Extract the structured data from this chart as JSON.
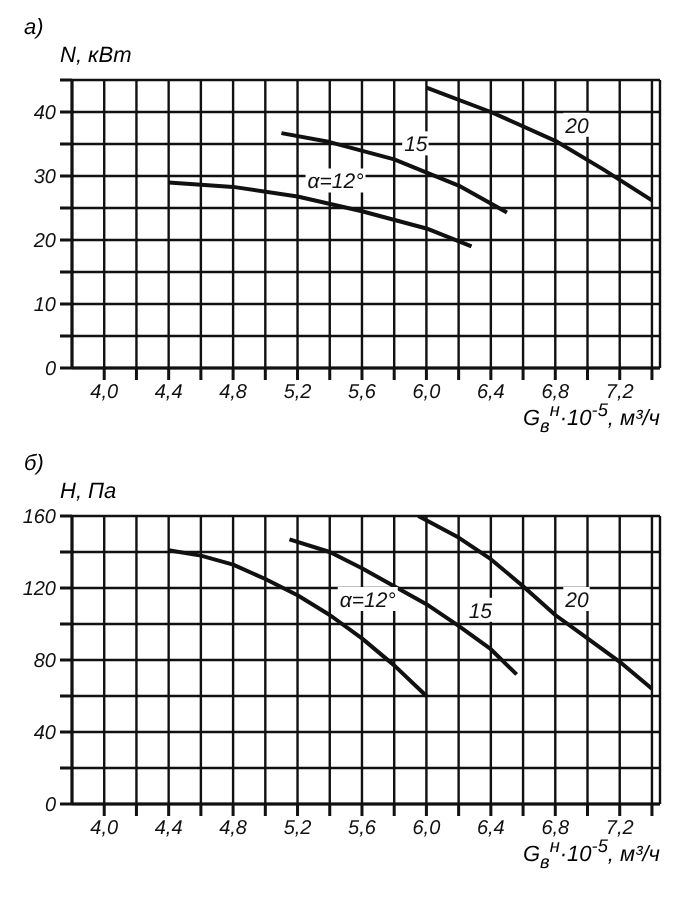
{
  "chart_data": [
    {
      "type": "line",
      "title": "а)",
      "ylabel": "N, кВт",
      "xlabel": "G$_{в}$$^{н}$·10$^{-5}$, м³/ч",
      "grid": true,
      "marker": "none",
      "line_style": "solid",
      "xlim": [
        3.8,
        7.45
      ],
      "ylim": [
        0,
        45
      ],
      "xticks": [
        {
          "value": 4.0,
          "label": "4,0"
        },
        {
          "value": 4.2,
          "label": null
        },
        {
          "value": 4.4,
          "label": "4,4"
        },
        {
          "value": 4.6,
          "label": null
        },
        {
          "value": 4.8,
          "label": "4,8"
        },
        {
          "value": 5.0,
          "label": null
        },
        {
          "value": 5.2,
          "label": "5,2"
        },
        {
          "value": 5.4,
          "label": null
        },
        {
          "value": 5.6,
          "label": "5,6"
        },
        {
          "value": 5.8,
          "label": null
        },
        {
          "value": 6.0,
          "label": "6,0"
        },
        {
          "value": 6.2,
          "label": null
        },
        {
          "value": 6.4,
          "label": "6,4"
        },
        {
          "value": 6.6,
          "label": null
        },
        {
          "value": 6.8,
          "label": "6,8"
        },
        {
          "value": 7.0,
          "label": null
        },
        {
          "value": 7.2,
          "label": "7,2"
        },
        {
          "value": 7.4,
          "label": null
        }
      ],
      "yticks": [
        0,
        {
          "value": 5,
          "label": null
        },
        10,
        {
          "value": 15,
          "label": null
        },
        20,
        {
          "value": 25,
          "label": null
        },
        30,
        {
          "value": 35,
          "label": null
        },
        40,
        {
          "value": 45,
          "label": null
        }
      ],
      "series": [
        {
          "color": "#111111",
          "x": [
            4.4,
            4.8,
            5.2,
            5.6,
            6.0,
            6.28
          ],
          "values": [
            29,
            28.3,
            26.8,
            24.5,
            21.8,
            19
          ]
        },
        {
          "color": "#111111",
          "x": [
            5.1,
            5.4,
            5.8,
            6.2,
            6.5
          ],
          "values": [
            36.7,
            35.3,
            32.6,
            28.5,
            24.3
          ]
        },
        {
          "color": "#111111",
          "x": [
            6.0,
            6.4,
            6.8,
            7.1,
            7.4
          ],
          "values": [
            43.8,
            40,
            35.5,
            31,
            26.2
          ]
        }
      ],
      "annotations": [
        {
          "text": "α=12°",
          "x": 5.2,
          "y": 26.8
        },
        {
          "text": "15",
          "x": 5.8,
          "y": 32.6
        },
        {
          "text": "20",
          "x": 6.8,
          "y": 35.5
        }
      ]
    },
    {
      "type": "line",
      "title": "б)",
      "ylabel": "H, Па",
      "xlabel": "G$_{в}$$^{н}$·10$^{-5}$, м³/ч",
      "grid": true,
      "marker": "none",
      "line_style": "solid",
      "xlim": [
        3.8,
        7.45
      ],
      "ylim": [
        0,
        160
      ],
      "xticks": [
        {
          "value": 4.0,
          "label": "4,0"
        },
        {
          "value": 4.2,
          "label": null
        },
        {
          "value": 4.4,
          "label": "4,4"
        },
        {
          "value": 4.6,
          "label": null
        },
        {
          "value": 4.8,
          "label": "4,8"
        },
        {
          "value": 5.0,
          "label": null
        },
        {
          "value": 5.2,
          "label": "5,2"
        },
        {
          "value": 5.4,
          "label": null
        },
        {
          "value": 5.6,
          "label": "5,6"
        },
        {
          "value": 5.8,
          "label": null
        },
        {
          "value": 6.0,
          "label": "6,0"
        },
        {
          "value": 6.2,
          "label": null
        },
        {
          "value": 6.4,
          "label": "6,4"
        },
        {
          "value": 6.6,
          "label": null
        },
        {
          "value": 6.8,
          "label": "6,8"
        },
        {
          "value": 7.0,
          "label": null
        },
        {
          "value": 7.2,
          "label": "7,2"
        },
        {
          "value": 7.4,
          "label": null
        }
      ],
      "yticks": [
        0,
        {
          "value": 20,
          "label": null
        },
        40,
        {
          "value": 60,
          "label": null
        },
        80,
        {
          "value": 100,
          "label": null
        },
        120,
        {
          "value": 140,
          "label": null
        },
        160
      ],
      "series": [
        {
          "color": "#111111",
          "x": [
            4.4,
            4.6,
            4.8,
            5.0,
            5.2,
            5.4,
            5.6,
            5.8,
            6.0
          ],
          "values": [
            141,
            138,
            133,
            125,
            116,
            105,
            92,
            77,
            60
          ]
        },
        {
          "color": "#111111",
          "x": [
            5.15,
            5.4,
            5.6,
            5.8,
            6.0,
            6.2,
            6.4,
            6.56
          ],
          "values": [
            147,
            140,
            131,
            121,
            111,
            99,
            86,
            72
          ]
        },
        {
          "color": "#111111",
          "x": [
            5.95,
            6.2,
            6.4,
            6.6,
            6.8,
            7.0,
            7.2,
            7.4
          ],
          "values": [
            160,
            148,
            136,
            121,
            105,
            92,
            79,
            64
          ]
        }
      ],
      "annotations": [
        {
          "text": "α=12°",
          "x": 5.4,
          "y": 105
        },
        {
          "text": "15",
          "x": 6.2,
          "y": 99
        },
        {
          "text": "20",
          "x": 6.8,
          "y": 105
        }
      ]
    }
  ]
}
